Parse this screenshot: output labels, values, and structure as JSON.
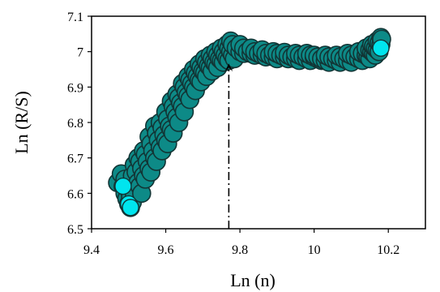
{
  "chart_data": {
    "type": "scatter",
    "title": "",
    "xlabel": "Ln (n)",
    "ylabel": "Ln (R/S)",
    "xlim": [
      9.4,
      10.3
    ],
    "ylim": [
      6.5,
      7.1
    ],
    "xticks": [
      "9.4",
      "9.6",
      "9.8",
      "10",
      "10.2"
    ],
    "yticks": [
      "6.5",
      "6.6",
      "6.7",
      "6.8",
      "6.9",
      "7",
      "7.1"
    ],
    "grid": false,
    "legend": "none",
    "marker_color": "#0d8a87",
    "marker_edge": "#123535",
    "highlight_color": "#00e5ee",
    "annotation": {
      "type": "dash-dot arrow",
      "x": 9.77,
      "y_from": 6.5,
      "y_to": 6.955
    },
    "series": [
      {
        "points": [
          [
            9.47,
            6.63
          ],
          [
            9.48,
            6.655
          ],
          [
            9.485,
            6.62
          ],
          [
            9.49,
            6.6
          ],
          [
            9.495,
            6.585
          ],
          [
            9.5,
            6.57
          ],
          [
            9.505,
            6.56
          ],
          [
            9.49,
            6.64
          ],
          [
            9.5,
            6.61
          ],
          [
            9.505,
            6.59
          ],
          [
            9.51,
            6.575
          ],
          [
            9.515,
            6.6
          ],
          [
            9.51,
            6.65
          ],
          [
            9.515,
            6.68
          ],
          [
            9.52,
            6.66
          ],
          [
            9.525,
            6.63
          ],
          [
            9.53,
            6.62
          ],
          [
            9.535,
            6.6
          ],
          [
            9.525,
            6.7
          ],
          [
            9.53,
            6.69
          ],
          [
            9.535,
            6.67
          ],
          [
            9.54,
            6.65
          ],
          [
            9.545,
            6.64
          ],
          [
            9.54,
            6.72
          ],
          [
            9.545,
            6.71
          ],
          [
            9.55,
            6.69
          ],
          [
            9.555,
            6.67
          ],
          [
            9.56,
            6.66
          ],
          [
            9.555,
            6.76
          ],
          [
            9.56,
            6.74
          ],
          [
            9.565,
            6.72
          ],
          [
            9.57,
            6.7
          ],
          [
            9.575,
            6.69
          ],
          [
            9.57,
            6.79
          ],
          [
            9.575,
            6.77
          ],
          [
            9.58,
            6.75
          ],
          [
            9.585,
            6.73
          ],
          [
            9.59,
            6.72
          ],
          [
            9.585,
            6.8
          ],
          [
            9.59,
            6.785
          ],
          [
            9.595,
            6.765
          ],
          [
            9.6,
            6.75
          ],
          [
            9.605,
            6.74
          ],
          [
            9.6,
            6.83
          ],
          [
            9.605,
            6.81
          ],
          [
            9.61,
            6.79
          ],
          [
            9.615,
            6.78
          ],
          [
            9.62,
            6.77
          ],
          [
            9.615,
            6.86
          ],
          [
            9.62,
            6.845
          ],
          [
            9.625,
            6.83
          ],
          [
            9.63,
            6.815
          ],
          [
            9.635,
            6.8
          ],
          [
            9.63,
            6.88
          ],
          [
            9.635,
            6.87
          ],
          [
            9.64,
            6.855
          ],
          [
            9.645,
            6.845
          ],
          [
            9.65,
            6.83
          ],
          [
            9.645,
            6.91
          ],
          [
            9.65,
            6.9
          ],
          [
            9.655,
            6.885
          ],
          [
            9.66,
            6.875
          ],
          [
            9.665,
            6.865
          ],
          [
            9.66,
            6.93
          ],
          [
            9.665,
            6.92
          ],
          [
            9.67,
            6.91
          ],
          [
            9.675,
            6.9
          ],
          [
            9.68,
            6.89
          ],
          [
            9.675,
            6.95
          ],
          [
            9.68,
            6.94
          ],
          [
            9.685,
            6.93
          ],
          [
            9.69,
            6.92
          ],
          [
            9.695,
            6.915
          ],
          [
            9.69,
            6.965
          ],
          [
            9.695,
            6.955
          ],
          [
            9.7,
            6.945
          ],
          [
            9.705,
            6.94
          ],
          [
            9.71,
            6.93
          ],
          [
            9.705,
            6.98
          ],
          [
            9.71,
            6.97
          ],
          [
            9.715,
            6.96
          ],
          [
            9.72,
            6.955
          ],
          [
            9.725,
            6.945
          ],
          [
            9.72,
            6.99
          ],
          [
            9.725,
            6.98
          ],
          [
            9.73,
            6.97
          ],
          [
            9.735,
            6.965
          ],
          [
            9.74,
            6.955
          ],
          [
            9.735,
            7.0
          ],
          [
            9.74,
            6.99
          ],
          [
            9.745,
            6.98
          ],
          [
            9.75,
            6.975
          ],
          [
            9.755,
            6.97
          ],
          [
            9.75,
            7.01
          ],
          [
            9.755,
            7.0
          ],
          [
            9.76,
            6.99
          ],
          [
            9.765,
            6.98
          ],
          [
            9.77,
            6.975
          ],
          [
            9.765,
            7.02
          ],
          [
            9.77,
            7.01
          ],
          [
            9.775,
            7.0
          ],
          [
            9.78,
            6.99
          ],
          [
            9.785,
            6.98
          ],
          [
            9.775,
            7.03
          ],
          [
            9.78,
            7.02
          ],
          [
            9.79,
            7.01
          ],
          [
            9.8,
            7.0
          ],
          [
            9.81,
            6.995
          ],
          [
            9.8,
            7.02
          ],
          [
            9.81,
            7.01
          ],
          [
            9.82,
            7.0
          ],
          [
            9.83,
            6.995
          ],
          [
            9.84,
            6.99
          ],
          [
            9.83,
            7.01
          ],
          [
            9.84,
            7.0
          ],
          [
            9.85,
            6.995
          ],
          [
            9.86,
            6.99
          ],
          [
            9.87,
            6.985
          ],
          [
            9.86,
            7.005
          ],
          [
            9.87,
            6.995
          ],
          [
            9.88,
            6.99
          ],
          [
            9.89,
            6.985
          ],
          [
            9.9,
            6.98
          ],
          [
            9.89,
            7.0
          ],
          [
            9.9,
            6.995
          ],
          [
            9.91,
            6.99
          ],
          [
            9.92,
            6.985
          ],
          [
            9.93,
            6.98
          ],
          [
            9.92,
            6.998
          ],
          [
            9.93,
            6.99
          ],
          [
            9.94,
            6.985
          ],
          [
            9.95,
            6.98
          ],
          [
            9.96,
            6.975
          ],
          [
            9.95,
            6.995
          ],
          [
            9.96,
            6.99
          ],
          [
            9.97,
            6.985
          ],
          [
            9.98,
            6.98
          ],
          [
            9.99,
            6.975
          ],
          [
            9.98,
            6.995
          ],
          [
            9.99,
            6.99
          ],
          [
            10.0,
            6.985
          ],
          [
            10.01,
            6.98
          ],
          [
            10.02,
            6.975
          ],
          [
            10.0,
            6.99
          ],
          [
            10.01,
            6.985
          ],
          [
            10.02,
            6.98
          ],
          [
            10.03,
            6.975
          ],
          [
            10.04,
            6.97
          ],
          [
            10.03,
            6.99
          ],
          [
            10.04,
            6.985
          ],
          [
            10.05,
            6.98
          ],
          [
            10.06,
            6.975
          ],
          [
            10.07,
            6.97
          ],
          [
            10.06,
            6.99
          ],
          [
            10.07,
            6.985
          ],
          [
            10.08,
            6.98
          ],
          [
            10.09,
            6.975
          ],
          [
            10.1,
            6.97
          ],
          [
            10.09,
            6.995
          ],
          [
            10.1,
            6.99
          ],
          [
            10.11,
            6.985
          ],
          [
            10.12,
            6.98
          ],
          [
            10.13,
            6.975
          ],
          [
            10.12,
            7.0
          ],
          [
            10.13,
            6.995
          ],
          [
            10.14,
            6.99
          ],
          [
            10.145,
            6.985
          ],
          [
            10.15,
            6.98
          ],
          [
            10.14,
            7.01
          ],
          [
            10.15,
            7.005
          ],
          [
            10.155,
            7.0
          ],
          [
            10.16,
            6.995
          ],
          [
            10.165,
            6.99
          ],
          [
            10.155,
            7.02
          ],
          [
            10.16,
            7.015
          ],
          [
            10.165,
            7.01
          ],
          [
            10.17,
            7.005
          ],
          [
            10.175,
            7.0
          ],
          [
            10.17,
            7.03
          ],
          [
            10.175,
            7.025
          ],
          [
            10.18,
            7.02
          ],
          [
            10.18,
            7.04
          ],
          [
            10.182,
            7.035
          ]
        ]
      }
    ],
    "highlight_points": [
      [
        9.485,
        6.62
      ],
      [
        9.5,
        6.57
      ],
      [
        9.505,
        6.56
      ],
      [
        10.18,
        7.01
      ]
    ]
  }
}
